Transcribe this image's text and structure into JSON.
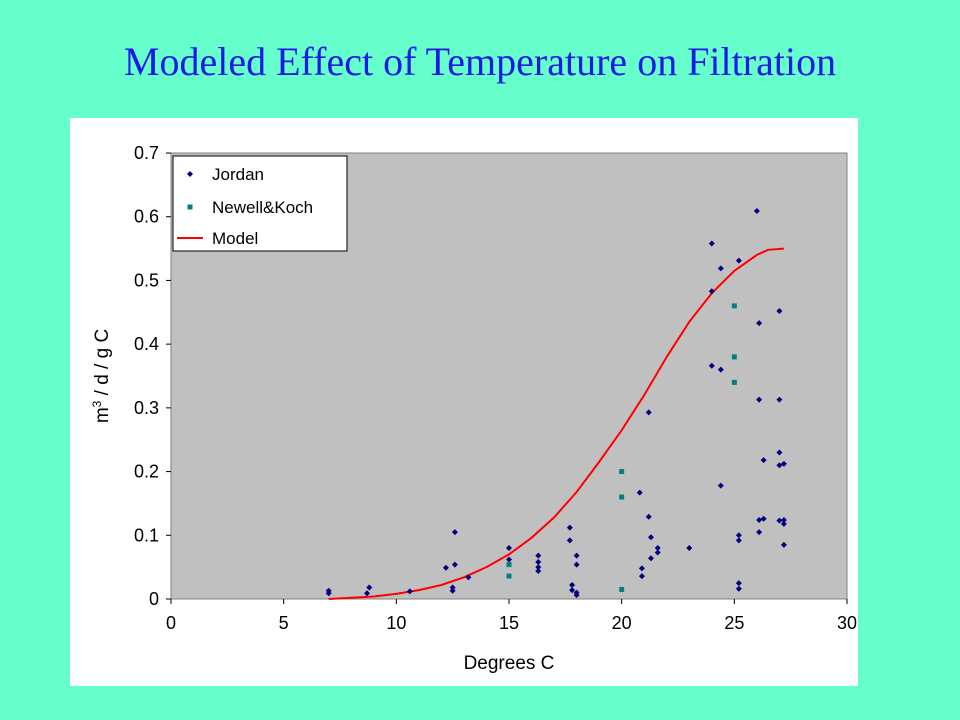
{
  "slide": {
    "title": "Modeled Effect of Temperature on Filtration"
  },
  "colors": {
    "background": "#66ffcc",
    "title": "#1a1ae6",
    "plot_background": "#c0c0c0",
    "jordan": "#000080",
    "newell_koch": "#008080",
    "model": "#ff0000"
  },
  "chart_data": {
    "type": "scatter",
    "title": "",
    "xlabel": "Degrees C",
    "ylabel_base": "m",
    "ylabel_sup": "3",
    "ylabel_rest": " / d / g C",
    "xlim": [
      0,
      30
    ],
    "ylim": [
      0,
      0.7
    ],
    "xticks": [
      "0",
      "5",
      "10",
      "15",
      "20",
      "25",
      "30"
    ],
    "yticks": [
      "0",
      "0.1",
      "0.2",
      "0.3",
      "0.4",
      "0.5",
      "0.6",
      "0.7"
    ],
    "grid": false,
    "legend_position": "top-left",
    "series": [
      {
        "name": "Jordan",
        "marker": "diamond",
        "points": [
          [
            7.0,
            0.009
          ],
          [
            7.0,
            0.013
          ],
          [
            8.7,
            0.009
          ],
          [
            8.8,
            0.018
          ],
          [
            10.6,
            0.012
          ],
          [
            12.2,
            0.049
          ],
          [
            12.5,
            0.013
          ],
          [
            12.5,
            0.018
          ],
          [
            12.6,
            0.054
          ],
          [
            12.6,
            0.105
          ],
          [
            13.2,
            0.034
          ],
          [
            15.0,
            0.08
          ],
          [
            15.0,
            0.062
          ],
          [
            16.3,
            0.068
          ],
          [
            16.3,
            0.058
          ],
          [
            16.3,
            0.05
          ],
          [
            16.3,
            0.044
          ],
          [
            17.7,
            0.112
          ],
          [
            17.7,
            0.092
          ],
          [
            17.8,
            0.022
          ],
          [
            17.8,
            0.014
          ],
          [
            18.0,
            0.068
          ],
          [
            18.0,
            0.054
          ],
          [
            18.0,
            0.01
          ],
          [
            18.0,
            0.006
          ],
          [
            20.8,
            0.167
          ],
          [
            20.9,
            0.048
          ],
          [
            20.9,
            0.036
          ],
          [
            21.2,
            0.293
          ],
          [
            21.2,
            0.129
          ],
          [
            21.3,
            0.097
          ],
          [
            21.3,
            0.064
          ],
          [
            21.6,
            0.08
          ],
          [
            21.6,
            0.073
          ],
          [
            23.0,
            0.08
          ],
          [
            24.0,
            0.558
          ],
          [
            24.0,
            0.483
          ],
          [
            24.0,
            0.366
          ],
          [
            24.4,
            0.519
          ],
          [
            24.4,
            0.36
          ],
          [
            24.4,
            0.178
          ],
          [
            25.2,
            0.531
          ],
          [
            25.2,
            0.1
          ],
          [
            25.2,
            0.092
          ],
          [
            25.2,
            0.025
          ],
          [
            25.2,
            0.016
          ],
          [
            26.0,
            0.609
          ],
          [
            26.1,
            0.433
          ],
          [
            26.1,
            0.313
          ],
          [
            26.1,
            0.124
          ],
          [
            26.1,
            0.105
          ],
          [
            26.3,
            0.218
          ],
          [
            26.3,
            0.126
          ],
          [
            27.0,
            0.452
          ],
          [
            27.0,
            0.313
          ],
          [
            27.0,
            0.23
          ],
          [
            27.0,
            0.21
          ],
          [
            27.0,
            0.123
          ],
          [
            27.2,
            0.212
          ],
          [
            27.2,
            0.124
          ],
          [
            27.2,
            0.118
          ],
          [
            27.2,
            0.085
          ]
        ]
      },
      {
        "name": "Newell&Koch",
        "marker": "square",
        "points": [
          [
            15.0,
            0.054
          ],
          [
            15.0,
            0.036
          ],
          [
            20.0,
            0.2
          ],
          [
            20.0,
            0.16
          ],
          [
            20.0,
            0.015
          ],
          [
            25.0,
            0.46
          ],
          [
            25.0,
            0.38
          ],
          [
            25.0,
            0.34
          ]
        ]
      },
      {
        "name": "Model",
        "marker": "line",
        "points": [
          [
            7,
            0.0
          ],
          [
            8,
            0.002
          ],
          [
            9,
            0.004
          ],
          [
            10,
            0.008
          ],
          [
            11,
            0.014
          ],
          [
            12,
            0.022
          ],
          [
            13,
            0.034
          ],
          [
            14,
            0.05
          ],
          [
            15,
            0.07
          ],
          [
            16,
            0.096
          ],
          [
            17,
            0.128
          ],
          [
            18,
            0.168
          ],
          [
            19,
            0.215
          ],
          [
            20,
            0.265
          ],
          [
            21,
            0.32
          ],
          [
            22,
            0.38
          ],
          [
            23,
            0.435
          ],
          [
            24,
            0.48
          ],
          [
            25,
            0.515
          ],
          [
            26,
            0.54
          ],
          [
            26.5,
            0.548
          ],
          [
            27.2,
            0.55
          ]
        ]
      }
    ]
  }
}
